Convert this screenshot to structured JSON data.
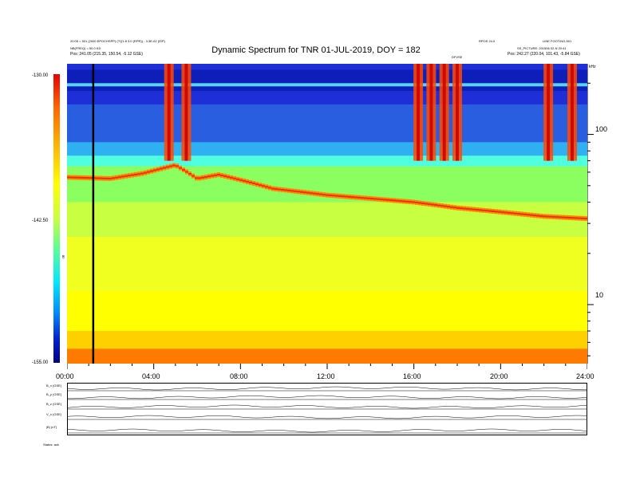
{
  "header": {
    "title": "Dynamic Spectrum for TNR 01-JUL-2019, DOY = 182",
    "left_line1": "20:05 = 501 (2000 EPOCHSPP) (TQ1.8 3.0 (RPR)) - 3.3E-02 (ISP)",
    "left_line2": "NB(FREQ) = 50.0 KD",
    "left_line3": "Pos: 241.05 (215.35, 150.54, -5.12 GSE)",
    "right_line1": "RPOS 24.0",
    "right_line2": "LINE FOOTING-501",
    "right_line3": "SS_PICTURE: 201506 02-N 20:41",
    "right_line4": "Pos: 242.27 (220.04, 101.43, -5.84 GSE)",
    "right_corner": "kHz",
    "marker_label": "DFVSE"
  },
  "colorbar": {
    "label_top": "-130.00",
    "label_mid": "-142.50",
    "label_bottom": "-155.00",
    "unit": "dB"
  },
  "bottom_panel": {
    "row_labels": [
      "B_x (GSE)",
      "B_y (GSE)",
      "B_z (GSE)",
      "V_x (GSE)",
      "|B| (nT)"
    ],
    "footer": "Status: ack"
  },
  "chart_data": {
    "type": "heatmap",
    "title": "Dynamic Spectrum for TNR 01-JUL-2019, DOY = 182",
    "x": {
      "label": "",
      "range_hours": [
        0,
        24
      ],
      "ticks": [
        "00:00",
        "04:00",
        "08:00",
        "12:00",
        "16:00",
        "20:00",
        "24:00"
      ]
    },
    "y": {
      "label": "kHz",
      "scale": "log",
      "range": [
        4.5,
        260
      ],
      "ticks": [
        "100",
        "10"
      ]
    },
    "z": {
      "unit": "dB",
      "range": [
        -155.0,
        -130.0
      ],
      "colormap": "rainbow (blue = low, red = high)"
    },
    "features": {
      "black_vertical_line_hour": 1.2,
      "plasma_line": [
        {
          "hour": 0.0,
          "khz": 56
        },
        {
          "hour": 2.0,
          "khz": 55
        },
        {
          "hour": 3.5,
          "khz": 59
        },
        {
          "hour": 5.0,
          "khz": 66
        },
        {
          "hour": 6.0,
          "khz": 55
        },
        {
          "hour": 7.0,
          "khz": 58
        },
        {
          "hour": 8.0,
          "khz": 54
        },
        {
          "hour": 9.5,
          "khz": 48
        },
        {
          "hour": 12.0,
          "khz": 44
        },
        {
          "hour": 14.0,
          "khz": 42
        },
        {
          "hour": 16.0,
          "khz": 40
        },
        {
          "hour": 18.0,
          "khz": 37
        },
        {
          "hour": 20.0,
          "khz": 35
        },
        {
          "hour": 22.0,
          "khz": 33
        },
        {
          "hour": 24.0,
          "khz": 32
        }
      ],
      "type3_burst_hours": [
        4.7,
        5.5,
        16.2,
        16.8,
        17.4,
        18.0,
        22.2,
        23.3
      ]
    }
  }
}
